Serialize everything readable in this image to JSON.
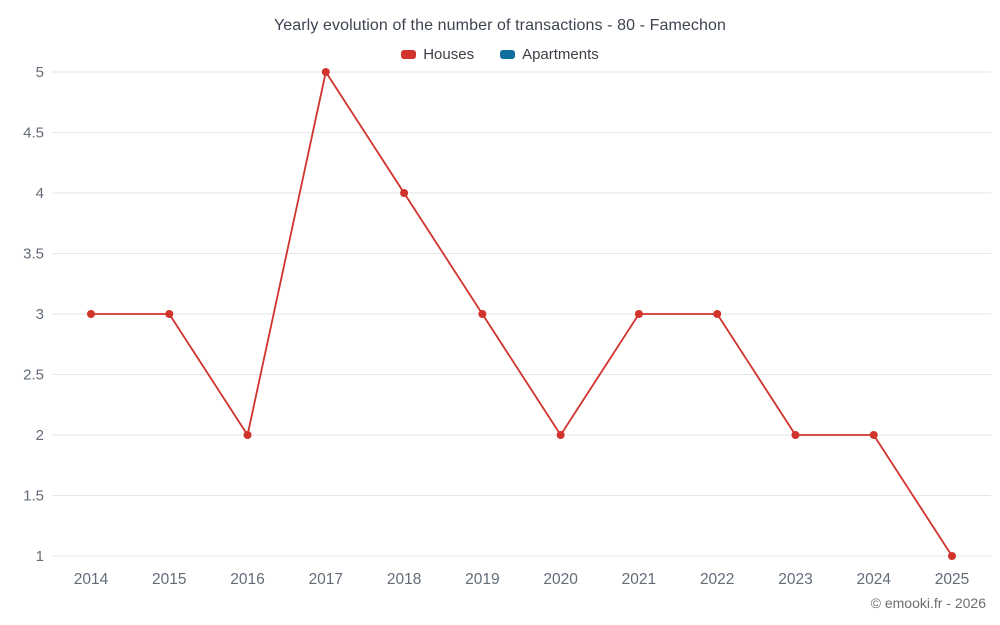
{
  "header": {
    "title": "Yearly evolution of the number of transactions - 80 - Famechon"
  },
  "legend": {
    "items": [
      {
        "label": "Houses",
        "color": "#d0342c"
      },
      {
        "label": "Apartments",
        "color": "#106f9f"
      }
    ]
  },
  "footer": {
    "credit": "© emooki.fr - 2026"
  },
  "colors": {
    "grid": "#e6e6e6",
    "axis_text": "#626c77",
    "houses": "#d0342c",
    "apartments": "#106f9f"
  },
  "chart_data": {
    "type": "line",
    "title": "Yearly evolution of the number of transactions - 80 - Famechon",
    "categories": [
      "2014",
      "2015",
      "2016",
      "2017",
      "2018",
      "2019",
      "2020",
      "2021",
      "2022",
      "2023",
      "2024",
      "2025"
    ],
    "series": [
      {
        "name": "Houses",
        "color": "#d0342c",
        "values": [
          3,
          3,
          2,
          5,
          4,
          3,
          2,
          3,
          3,
          2,
          2,
          1
        ]
      },
      {
        "name": "Apartments",
        "color": "#106f9f",
        "values": []
      }
    ],
    "xlabel": "",
    "ylabel": "",
    "ylim": [
      1,
      5
    ],
    "ytick_step": 0.5,
    "grid": "horizontal",
    "legend_position": "top"
  }
}
